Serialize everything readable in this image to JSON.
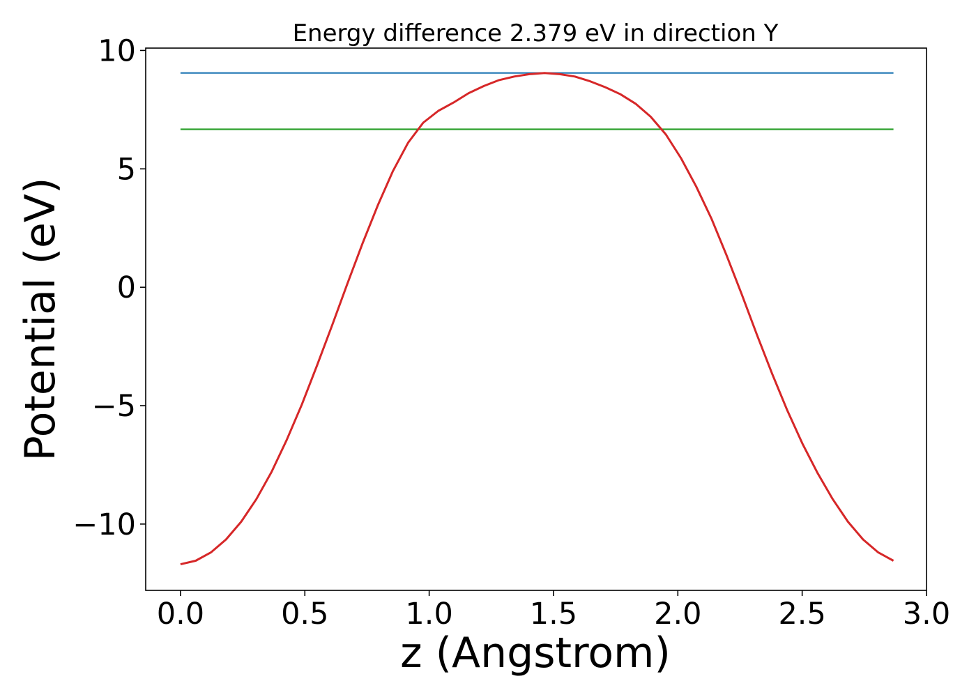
{
  "chart_data": {
    "type": "line",
    "title": "Energy difference 2.379 eV in direction Y",
    "xlabel": "z (Angstrom)",
    "ylabel": "Potential (eV)",
    "xlim": [
      -0.14,
      3.0
    ],
    "ylim": [
      -12.8,
      10.1
    ],
    "xticks": [
      0.0,
      0.5,
      1.0,
      1.5,
      2.0,
      2.5,
      3.0
    ],
    "xtick_labels": [
      "0.0",
      "0.5",
      "1.0",
      "1.5",
      "2.0",
      "2.5",
      "3.0"
    ],
    "yticks": [
      10,
      5,
      0,
      -5,
      -10
    ],
    "ytick_labels": [
      "10",
      "5",
      "0",
      "−5",
      "−10"
    ],
    "grid": false,
    "series": [
      {
        "color": "#d62728",
        "x": [
          0.0,
          0.061,
          0.122,
          0.183,
          0.244,
          0.305,
          0.366,
          0.427,
          0.488,
          0.549,
          0.61,
          0.671,
          0.732,
          0.793,
          0.854,
          0.915,
          0.976,
          1.037,
          1.098,
          1.159,
          1.22,
          1.281,
          1.342,
          1.403,
          1.464,
          1.525,
          1.586,
          1.647,
          1.708,
          1.769,
          1.83,
          1.891,
          1.952,
          2.013,
          2.074,
          2.135,
          2.196,
          2.257,
          2.318,
          2.379,
          2.44,
          2.501,
          2.562,
          2.623,
          2.684,
          2.745,
          2.806,
          2.867
        ],
        "values": [
          -11.7,
          -11.55,
          -11.2,
          -10.65,
          -9.9,
          -8.95,
          -7.8,
          -6.45,
          -4.95,
          -3.3,
          -1.6,
          0.15,
          1.85,
          3.45,
          4.9,
          6.1,
          6.95,
          7.45,
          7.8,
          8.2,
          8.5,
          8.75,
          8.9,
          9.0,
          9.05,
          9.0,
          8.9,
          8.7,
          8.45,
          8.15,
          7.75,
          7.2,
          6.45,
          5.45,
          4.25,
          2.9,
          1.35,
          -0.3,
          -2.0,
          -3.65,
          -5.2,
          -6.6,
          -7.85,
          -8.95,
          -9.9,
          -10.65,
          -11.2,
          -11.55
        ]
      },
      {
        "color": "#1f77b4",
        "x": [
          0.0,
          2.867
        ],
        "values": [
          9.05,
          9.05
        ]
      },
      {
        "color": "#2ca02c",
        "x": [
          0.0,
          2.867
        ],
        "values": [
          6.67,
          6.67
        ]
      }
    ]
  }
}
